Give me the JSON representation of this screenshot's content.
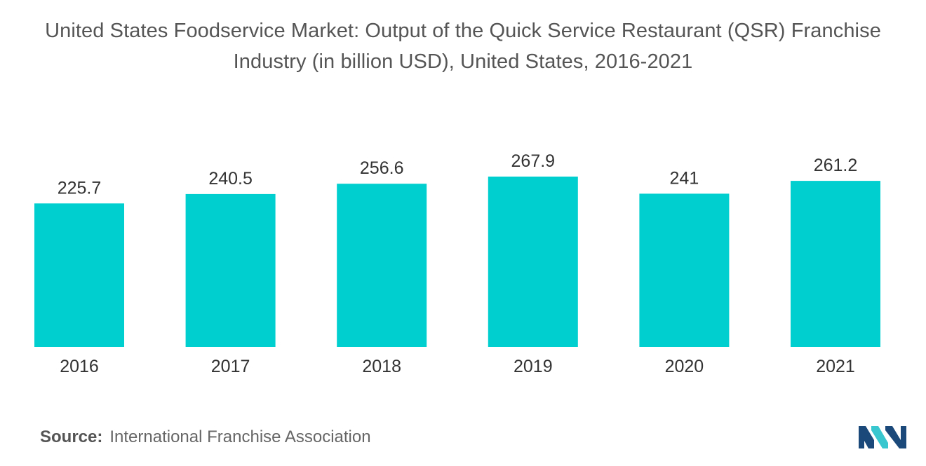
{
  "title": {
    "line1": "United States Foodservice Market: Output of the Quick Service Restaurant (QSR) Franchise",
    "line2": "Industry (in billion USD), United States, 2016-2021"
  },
  "source": {
    "label": "Source:",
    "text": "International Franchise Association"
  },
  "colors": {
    "bar": "#00cfcf",
    "logo_dark": "#1b4a7a",
    "logo_light": "#38c7cf"
  },
  "chart_data": {
    "type": "bar",
    "title": "United States Foodservice Market: Output of the Quick Service Restaurant (QSR) Franchise Industry (in billion USD), United States, 2016-2021",
    "categories": [
      "2016",
      "2017",
      "2018",
      "2019",
      "2020",
      "2021"
    ],
    "values": [
      225.7,
      240.5,
      256.6,
      267.9,
      241,
      261.2
    ],
    "value_labels": [
      "225.7",
      "240.5",
      "256.6",
      "267.9",
      "241",
      "261.2"
    ],
    "xlabel": "",
    "ylabel": "",
    "ylim": [
      0,
      267.9
    ],
    "grid": false,
    "legend": "none"
  }
}
